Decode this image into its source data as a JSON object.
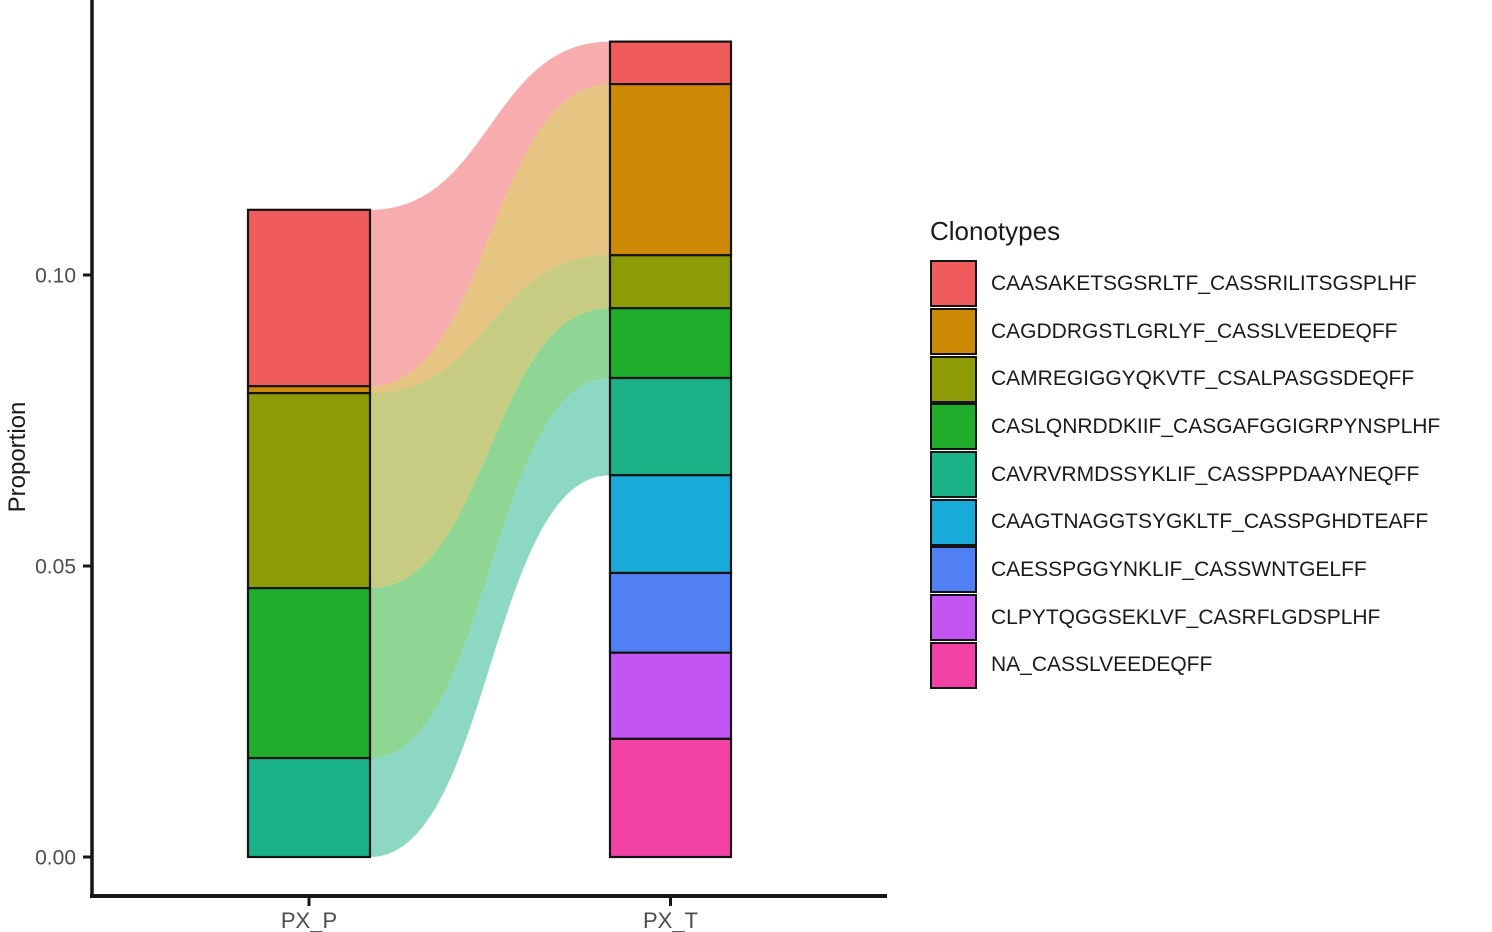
{
  "axes": {
    "y_label": "Proportion",
    "y_ticks": [
      {
        "label": "0.00",
        "value": 0.0
      },
      {
        "label": "0.05",
        "value": 0.05
      },
      {
        "label": "0.10",
        "value": 0.1
      }
    ],
    "x_categories": [
      "PX_P",
      "PX_T"
    ]
  },
  "legend": {
    "title": "Clonotypes"
  },
  "chart_data": {
    "type": "alluvial",
    "title": "",
    "xlabel": "",
    "ylabel": "Proportion",
    "ylim": [
      0,
      0.145
    ],
    "grid": false,
    "legend_position": "right",
    "categories": [
      "PX_P",
      "PX_T"
    ],
    "series": [
      {
        "name": "CAASAKETSGSRLTF_CASSRILITSGSPLHF",
        "color": "#F05C5C",
        "values": [
          0.0303,
          0.0073
        ]
      },
      {
        "name": "CAGDDRGSTLGRLYF_CASSLVEEDEQFF",
        "color": "#CE8A06",
        "values": [
          0.0012,
          0.0294
        ]
      },
      {
        "name": "CAMREGIGGYQKVTF_CSALPASGSDEQFF",
        "color": "#8D9B06",
        "values": [
          0.0335,
          0.0091
        ]
      },
      {
        "name": "CASLQNRDDKIIF_CASGAFGGIGRPYNSPLHF",
        "color": "#20AD2B",
        "values": [
          0.0292,
          0.012
        ]
      },
      {
        "name": "CAVRVRMDSSYKLIF_CASSPPDAAYNEQFF",
        "color": "#1CB287",
        "values": [
          0.017,
          0.0167
        ]
      },
      {
        "name": "CAAGTNAGGTSYGKLTF_CASSPGHDTEAFF",
        "color": "#18AAD8",
        "values": [
          0.0,
          0.0168
        ]
      },
      {
        "name": "CAESSPGGYNKLIF_CASSWNTGELFF",
        "color": "#5180F5",
        "values": [
          0.0,
          0.0137
        ]
      },
      {
        "name": "CLPYTQGGSEKLVF_CASRFLGDSPLHF",
        "color": "#C355F2",
        "values": [
          0.0,
          0.0148
        ]
      },
      {
        "name": "NA_CASSLVEEDEQFF",
        "color": "#F342A5",
        "values": [
          0.0,
          0.0203
        ]
      }
    ],
    "ribbon_opacity": 0.5,
    "colors": {
      "axis": "#161616",
      "tick_label": "#4d4d4d",
      "segment_border": "#141414"
    }
  }
}
